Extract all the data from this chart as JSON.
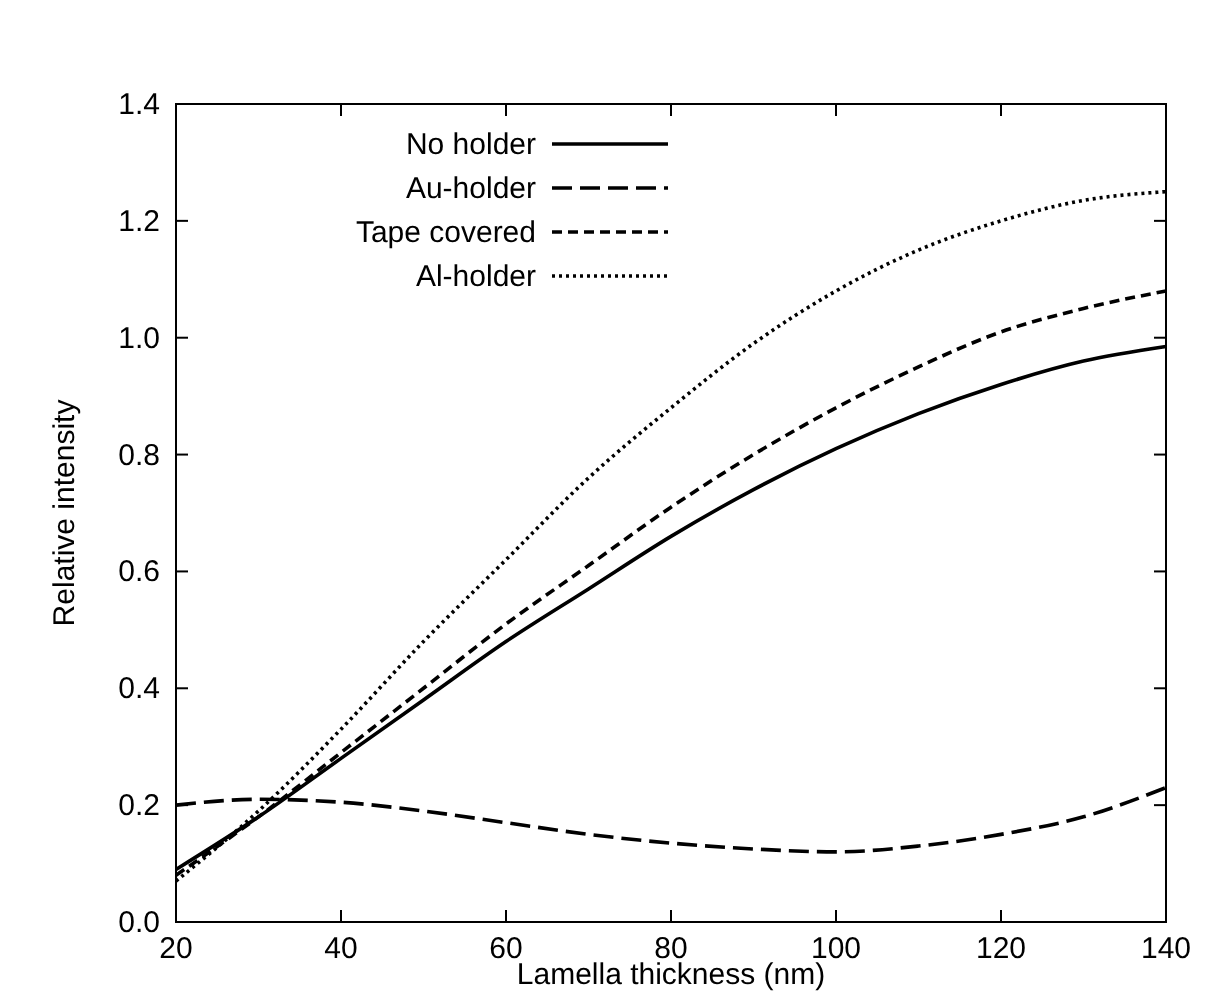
{
  "chart_data": {
    "type": "line",
    "xlabel": "Lamella thickness (nm)",
    "ylabel": "Relative intensity",
    "x": [
      20,
      30,
      40,
      50,
      60,
      70,
      80,
      90,
      100,
      110,
      120,
      130,
      140
    ],
    "xlim": [
      20,
      140
    ],
    "xticks": [
      20,
      40,
      60,
      80,
      100,
      120,
      140
    ],
    "ylim": [
      0,
      1.4
    ],
    "yticks": [
      {
        "value": 0,
        "label": "0.0"
      },
      0.2,
      0.4,
      0.6,
      0.8,
      {
        "value": 1,
        "label": "1.0"
      },
      1.2,
      1.4
    ],
    "legend": "top left",
    "marker": "none",
    "series": [
      {
        "name": "No holder",
        "color": "#000000",
        "line_style": "solid",
        "values": [
          0.09,
          0.18,
          0.28,
          0.38,
          0.48,
          0.57,
          0.66,
          0.74,
          0.81,
          0.87,
          0.92,
          0.96,
          0.985
        ]
      },
      {
        "name": "Au-holder",
        "color": "#000000",
        "line_style": "longdash",
        "values": [
          0.2,
          0.21,
          0.205,
          0.19,
          0.17,
          0.15,
          0.135,
          0.125,
          0.12,
          0.13,
          0.15,
          0.18,
          0.23
        ]
      },
      {
        "name": "Tape covered",
        "color": "#000000",
        "line_style": "dashed",
        "values": [
          0.08,
          0.18,
          0.29,
          0.4,
          0.51,
          0.61,
          0.71,
          0.8,
          0.88,
          0.95,
          1.01,
          1.05,
          1.08
        ]
      },
      {
        "name": "Al-holder",
        "color": "#000000",
        "line_style": "dotted",
        "values": [
          0.07,
          0.19,
          0.33,
          0.48,
          0.62,
          0.76,
          0.88,
          0.99,
          1.08,
          1.15,
          1.2,
          1.235,
          1.25
        ]
      }
    ]
  }
}
